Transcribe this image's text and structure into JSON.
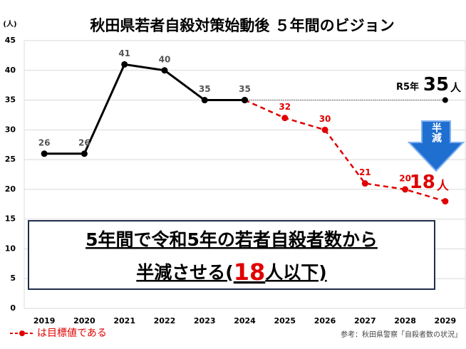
{
  "chart_data": {
    "type": "line",
    "title": "秋田県若者自殺対策始動後 ５年間のビジョン",
    "y_unit": "(人)",
    "categories": [
      "2019",
      "2020",
      "2021",
      "2022",
      "2023",
      "2024",
      "2025",
      "2026",
      "2027",
      "2028",
      "2029"
    ],
    "series": [
      {
        "color": "#000000",
        "dash": false,
        "values": [
          26,
          26,
          41,
          40,
          35,
          35,
          null,
          null,
          null,
          null,
          null
        ]
      },
      {
        "name": "は目標値である",
        "color": "#e00000",
        "dash": true,
        "values": [
          null,
          null,
          null,
          null,
          null,
          35,
          32,
          30,
          21,
          20,
          18
        ]
      }
    ],
    "ylim": [
      0,
      45
    ],
    "yticks": [
      0,
      5,
      10,
      15,
      20,
      25,
      30,
      35,
      40,
      45
    ],
    "grid": true,
    "reference": {
      "value": 35,
      "prefix": "R5年",
      "unit": "人"
    },
    "target_unit": "人",
    "arrow_label": "半減",
    "message": {
      "line1": "5年間で令和5年の若者自殺者数から",
      "line2_start": "半減させる(",
      "line2_number": "18",
      "line2_end": "人以下)"
    },
    "source": "参考：秋田県警察「自殺者数の状況」"
  }
}
